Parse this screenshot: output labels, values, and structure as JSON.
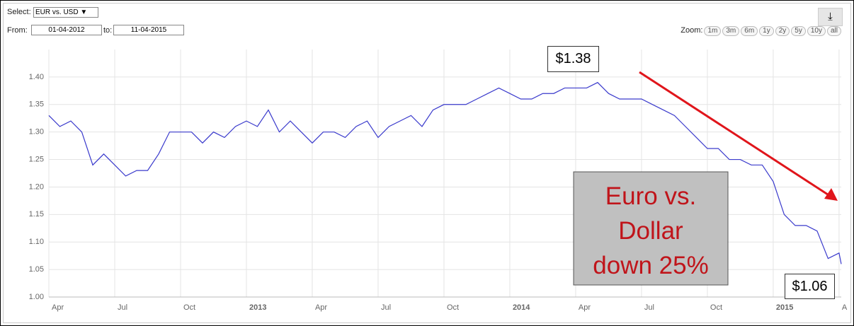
{
  "ui": {
    "select_label": "Select:",
    "select_value": "EUR vs. USD",
    "from_label": "From:",
    "from_value": "01-04-2012",
    "to_label": "to:",
    "to_value": "11-04-2015",
    "zoom_label": "Zoom:",
    "zoom_options": [
      "1m",
      "3m",
      "6m",
      "1y",
      "2y",
      "5y",
      "10y",
      "all"
    ]
  },
  "chart_data": {
    "type": "line",
    "x": [
      0,
      0.5,
      1,
      1.5,
      2,
      2.5,
      3,
      3.5,
      4,
      4.5,
      5,
      5.5,
      6,
      6.5,
      7,
      7.5,
      8,
      8.5,
      9,
      9.5,
      10,
      10.5,
      11,
      11.5,
      12,
      12.5,
      13,
      13.5,
      14,
      14.5,
      15,
      15.5,
      16,
      16.5,
      17,
      17.5,
      18,
      18.5,
      19,
      19.5,
      20,
      20.5,
      21,
      21.5,
      22,
      22.5,
      23,
      23.5,
      24,
      24.5,
      25,
      25.5,
      26,
      26.5,
      27,
      27.5,
      28,
      28.5,
      29,
      29.5,
      30,
      30.5,
      31,
      31.5,
      32,
      32.5,
      33,
      33.5,
      34,
      34.5,
      35,
      35.5,
      36,
      36.1
    ],
    "series": [
      {
        "name": "EUR vs. USD",
        "color": "#3a3acc",
        "values": [
          1.33,
          1.31,
          1.32,
          1.3,
          1.24,
          1.26,
          1.24,
          1.22,
          1.23,
          1.23,
          1.26,
          1.3,
          1.3,
          1.3,
          1.28,
          1.3,
          1.29,
          1.31,
          1.32,
          1.31,
          1.34,
          1.3,
          1.32,
          1.3,
          1.28,
          1.3,
          1.3,
          1.29,
          1.31,
          1.32,
          1.29,
          1.31,
          1.32,
          1.33,
          1.31,
          1.34,
          1.35,
          1.35,
          1.35,
          1.36,
          1.37,
          1.38,
          1.37,
          1.36,
          1.36,
          1.37,
          1.37,
          1.38,
          1.38,
          1.38,
          1.39,
          1.37,
          1.36,
          1.36,
          1.36,
          1.35,
          1.34,
          1.33,
          1.31,
          1.29,
          1.27,
          1.27,
          1.25,
          1.25,
          1.24,
          1.24,
          1.21,
          1.15,
          1.13,
          1.13,
          1.12,
          1.07,
          1.08,
          1.06
        ]
      }
    ],
    "xlim": [
      0,
      36.1
    ],
    "xticks": [
      {
        "value": 0,
        "label": "Apr"
      },
      {
        "value": 3,
        "label": "Jul"
      },
      {
        "value": 6,
        "label": "Oct"
      },
      {
        "value": 9,
        "label": "2013"
      },
      {
        "value": 12,
        "label": "Apr"
      },
      {
        "value": 15,
        "label": "Jul"
      },
      {
        "value": 18,
        "label": "Oct"
      },
      {
        "value": 21,
        "label": "2014"
      },
      {
        "value": 24,
        "label": "Apr"
      },
      {
        "value": 27,
        "label": "Jul"
      },
      {
        "value": 30,
        "label": "Oct"
      },
      {
        "value": 33,
        "label": "2015"
      },
      {
        "value": 36,
        "label": "A"
      }
    ],
    "ylim": [
      1.0,
      1.45
    ],
    "yticks": [
      {
        "value": 1.0,
        "label": "1.00"
      },
      {
        "value": 1.05,
        "label": "1.05"
      },
      {
        "value": 1.1,
        "label": "1.10"
      },
      {
        "value": 1.15,
        "label": "1.15"
      },
      {
        "value": 1.2,
        "label": "1.20"
      },
      {
        "value": 1.25,
        "label": "1.25"
      },
      {
        "value": 1.3,
        "label": "1.30"
      },
      {
        "value": 1.35,
        "label": "1.35"
      },
      {
        "value": 1.4,
        "label": "1.40"
      }
    ],
    "grid": true,
    "annotations": {
      "high": "$1.38",
      "low": "$1.06",
      "headline": [
        "Euro vs.",
        "Dollar",
        "down 25%"
      ]
    }
  }
}
